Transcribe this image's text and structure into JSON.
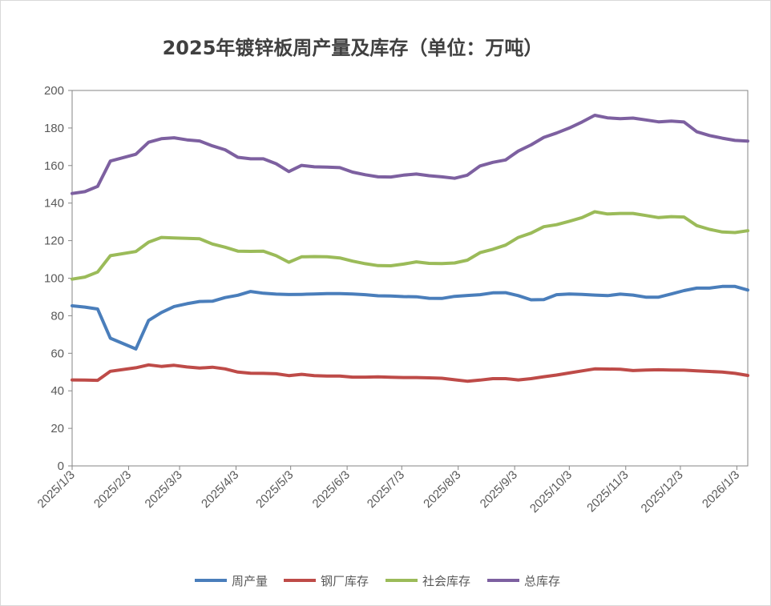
{
  "chart_data": {
    "type": "line",
    "title": "2025年镀锌板周产量及库存（单位：万吨）",
    "xlabel": "",
    "ylabel": "",
    "ylim": [
      0,
      200
    ],
    "yticks": [
      0,
      20,
      40,
      60,
      80,
      100,
      120,
      140,
      160,
      180,
      200
    ],
    "x_tick_labels": [
      "2025/1/3",
      "2025/2/3",
      "2025/3/3",
      "2025/4/3",
      "2025/5/3",
      "2025/6/3",
      "2025/7/3",
      "2025/8/3",
      "2025/9/3",
      "2025/10/3",
      "2025/11/3",
      "2025/12/3",
      "2026/1/3"
    ],
    "x_range": [
      "2025/1/3",
      "2026/1/9"
    ],
    "grid": false,
    "legend_position": "bottom",
    "series": [
      {
        "name": "周产量",
        "color": "#4a7ebb",
        "values": [
          [
            "2025/1/3",
            85.3
          ],
          [
            "2025/1/10",
            84.6
          ],
          [
            "2025/1/17",
            83.6
          ],
          [
            "2025/1/24",
            68.0
          ],
          [
            "2025/2/7",
            62.3
          ],
          [
            "2025/2/14",
            77.5
          ],
          [
            "2025/2/21",
            81.7
          ],
          [
            "2025/2/28",
            84.9
          ],
          [
            "2025/3/7",
            86.4
          ],
          [
            "2025/3/14",
            87.6
          ],
          [
            "2025/3/21",
            87.7
          ],
          [
            "2025/3/28",
            89.7
          ],
          [
            "2025/4/4",
            90.9
          ],
          [
            "2025/4/11",
            92.9
          ],
          [
            "2025/4/18",
            92.0
          ],
          [
            "2025/4/25",
            91.5
          ],
          [
            "2025/5/2",
            91.3
          ],
          [
            "2025/5/9",
            91.4
          ],
          [
            "2025/5/16",
            91.6
          ],
          [
            "2025/5/23",
            91.8
          ],
          [
            "2025/5/30",
            91.8
          ],
          [
            "2025/6/6",
            91.6
          ],
          [
            "2025/6/13",
            91.2
          ],
          [
            "2025/6/20",
            90.6
          ],
          [
            "2025/6/27",
            90.5
          ],
          [
            "2025/7/4",
            90.2
          ],
          [
            "2025/7/11",
            90.1
          ],
          [
            "2025/7/18",
            89.3
          ],
          [
            "2025/7/25",
            89.2
          ],
          [
            "2025/8/1",
            90.3
          ],
          [
            "2025/8/8",
            90.8
          ],
          [
            "2025/8/15",
            91.2
          ],
          [
            "2025/8/22",
            92.2
          ],
          [
            "2025/8/29",
            92.3
          ],
          [
            "2025/9/5",
            90.7
          ],
          [
            "2025/9/12",
            88.5
          ],
          [
            "2025/9/19",
            88.6
          ],
          [
            "2025/9/26",
            91.2
          ],
          [
            "2025/10/3",
            91.6
          ],
          [
            "2025/10/10",
            91.4
          ],
          [
            "2025/10/17",
            91.0
          ],
          [
            "2025/10/24",
            90.7
          ],
          [
            "2025/10/31",
            91.5
          ],
          [
            "2025/11/7",
            91.0
          ],
          [
            "2025/11/14",
            89.9
          ],
          [
            "2025/11/21",
            89.9
          ],
          [
            "2025/11/28",
            91.6
          ],
          [
            "2025/12/5",
            93.4
          ],
          [
            "2025/12/12",
            94.7
          ],
          [
            "2025/12/19",
            94.7
          ],
          [
            "2025/12/26",
            95.6
          ],
          [
            "2026/1/2",
            95.6
          ],
          [
            "2026/1/9",
            93.7
          ]
        ]
      },
      {
        "name": "钢厂库存",
        "color": "#be4b48",
        "values": [
          [
            "2025/1/3",
            45.8
          ],
          [
            "2025/1/10",
            45.7
          ],
          [
            "2025/1/17",
            45.6
          ],
          [
            "2025/1/24",
            50.4
          ],
          [
            "2025/2/7",
            52.3
          ],
          [
            "2025/2/14",
            53.8
          ],
          [
            "2025/2/21",
            53.0
          ],
          [
            "2025/2/28",
            53.6
          ],
          [
            "2025/3/7",
            52.7
          ],
          [
            "2025/3/14",
            52.1
          ],
          [
            "2025/3/21",
            52.6
          ],
          [
            "2025/3/28",
            51.7
          ],
          [
            "2025/4/4",
            50.0
          ],
          [
            "2025/4/11",
            49.4
          ],
          [
            "2025/4/18",
            49.3
          ],
          [
            "2025/4/25",
            49.1
          ],
          [
            "2025/5/2",
            48.1
          ],
          [
            "2025/5/9",
            48.8
          ],
          [
            "2025/5/16",
            48.1
          ],
          [
            "2025/5/23",
            47.9
          ],
          [
            "2025/5/30",
            47.9
          ],
          [
            "2025/6/6",
            47.3
          ],
          [
            "2025/6/13",
            47.3
          ],
          [
            "2025/6/20",
            47.4
          ],
          [
            "2025/6/27",
            47.2
          ],
          [
            "2025/7/4",
            47.1
          ],
          [
            "2025/7/11",
            47.1
          ],
          [
            "2025/7/18",
            46.9
          ],
          [
            "2025/7/25",
            46.7
          ],
          [
            "2025/8/1",
            45.9
          ],
          [
            "2025/8/8",
            45.1
          ],
          [
            "2025/8/15",
            45.7
          ],
          [
            "2025/8/22",
            46.5
          ],
          [
            "2025/8/29",
            46.5
          ],
          [
            "2025/9/5",
            45.8
          ],
          [
            "2025/9/12",
            46.5
          ],
          [
            "2025/9/19",
            47.5
          ],
          [
            "2025/9/26",
            48.4
          ],
          [
            "2025/10/3",
            49.5
          ],
          [
            "2025/10/10",
            50.6
          ],
          [
            "2025/10/17",
            51.7
          ],
          [
            "2025/10/24",
            51.6
          ],
          [
            "2025/10/31",
            51.5
          ],
          [
            "2025/11/7",
            50.8
          ],
          [
            "2025/11/14",
            51.1
          ],
          [
            "2025/11/21",
            51.2
          ],
          [
            "2025/11/28",
            51.1
          ],
          [
            "2025/12/5",
            51.0
          ],
          [
            "2025/12/12",
            50.6
          ],
          [
            "2025/12/19",
            50.3
          ],
          [
            "2025/12/26",
            50.0
          ],
          [
            "2026/1/2",
            49.3
          ],
          [
            "2026/1/9",
            48.2
          ]
        ]
      },
      {
        "name": "社会库存",
        "color": "#9bbb59",
        "values": [
          [
            "2025/1/3",
            99.5
          ],
          [
            "2025/1/10",
            100.6
          ],
          [
            "2025/1/17",
            103.3
          ],
          [
            "2025/1/24",
            112.0
          ],
          [
            "2025/2/7",
            114.2
          ],
          [
            "2025/2/14",
            119.2
          ],
          [
            "2025/2/21",
            121.7
          ],
          [
            "2025/2/28",
            121.4
          ],
          [
            "2025/3/7",
            121.2
          ],
          [
            "2025/3/14",
            121.0
          ],
          [
            "2025/3/21",
            118.2
          ],
          [
            "2025/3/28",
            116.5
          ],
          [
            "2025/4/4",
            114.4
          ],
          [
            "2025/4/11",
            114.3
          ],
          [
            "2025/4/18",
            114.4
          ],
          [
            "2025/4/25",
            112.0
          ],
          [
            "2025/5/2",
            108.5
          ],
          [
            "2025/5/9",
            111.4
          ],
          [
            "2025/5/16",
            111.5
          ],
          [
            "2025/5/23",
            111.4
          ],
          [
            "2025/5/30",
            110.8
          ],
          [
            "2025/6/6",
            109.1
          ],
          [
            "2025/6/13",
            107.7
          ],
          [
            "2025/6/20",
            106.7
          ],
          [
            "2025/6/27",
            106.6
          ],
          [
            "2025/7/4",
            107.5
          ],
          [
            "2025/7/11",
            108.7
          ],
          [
            "2025/7/18",
            107.9
          ],
          [
            "2025/7/25",
            107.8
          ],
          [
            "2025/8/1",
            108.1
          ],
          [
            "2025/8/8",
            109.6
          ],
          [
            "2025/8/15",
            113.6
          ],
          [
            "2025/8/22",
            115.4
          ],
          [
            "2025/8/29",
            117.6
          ],
          [
            "2025/9/5",
            121.7
          ],
          [
            "2025/9/12",
            124.0
          ],
          [
            "2025/9/19",
            127.4
          ],
          [
            "2025/9/26",
            128.5
          ],
          [
            "2025/10/3",
            130.3
          ],
          [
            "2025/10/10",
            132.3
          ],
          [
            "2025/10/17",
            135.4
          ],
          [
            "2025/10/24",
            134.2
          ],
          [
            "2025/10/31",
            134.5
          ],
          [
            "2025/11/7",
            134.5
          ],
          [
            "2025/11/14",
            133.4
          ],
          [
            "2025/11/21",
            132.3
          ],
          [
            "2025/11/28",
            132.8
          ],
          [
            "2025/12/5",
            132.6
          ],
          [
            "2025/12/12",
            128.0
          ],
          [
            "2025/12/19",
            126.0
          ],
          [
            "2025/12/26",
            124.6
          ],
          [
            "2026/1/2",
            124.3
          ],
          [
            "2026/1/9",
            125.3
          ]
        ]
      },
      {
        "name": "总库存",
        "color": "#7d60a0",
        "values": [
          [
            "2025/1/3",
            145.1
          ],
          [
            "2025/1/10",
            146.1
          ],
          [
            "2025/1/17",
            148.9
          ],
          [
            "2025/1/24",
            162.4
          ],
          [
            "2025/2/7",
            166.0
          ],
          [
            "2025/2/14",
            172.4
          ],
          [
            "2025/2/21",
            174.3
          ],
          [
            "2025/2/28",
            174.8
          ],
          [
            "2025/3/7",
            173.7
          ],
          [
            "2025/3/14",
            173.1
          ],
          [
            "2025/3/21",
            170.5
          ],
          [
            "2025/3/28",
            168.4
          ],
          [
            "2025/4/4",
            164.4
          ],
          [
            "2025/4/11",
            163.6
          ],
          [
            "2025/4/18",
            163.6
          ],
          [
            "2025/4/25",
            161.0
          ],
          [
            "2025/5/2",
            156.8
          ],
          [
            "2025/5/9",
            160.1
          ],
          [
            "2025/5/16",
            159.3
          ],
          [
            "2025/5/23",
            159.2
          ],
          [
            "2025/5/30",
            158.9
          ],
          [
            "2025/6/6",
            156.5
          ],
          [
            "2025/6/13",
            155.1
          ],
          [
            "2025/6/20",
            154.0
          ],
          [
            "2025/6/27",
            153.9
          ],
          [
            "2025/7/4",
            154.9
          ],
          [
            "2025/7/11",
            155.5
          ],
          [
            "2025/7/18",
            154.6
          ],
          [
            "2025/7/25",
            154.0
          ],
          [
            "2025/8/1",
            153.2
          ],
          [
            "2025/8/8",
            154.9
          ],
          [
            "2025/8/15",
            159.8
          ],
          [
            "2025/8/22",
            161.7
          ],
          [
            "2025/8/29",
            163.0
          ],
          [
            "2025/9/5",
            167.7
          ],
          [
            "2025/9/12",
            171.0
          ],
          [
            "2025/9/19",
            175.0
          ],
          [
            "2025/9/26",
            177.3
          ],
          [
            "2025/10/3",
            180.0
          ],
          [
            "2025/10/10",
            183.2
          ],
          [
            "2025/10/17",
            186.8
          ],
          [
            "2025/10/24",
            185.4
          ],
          [
            "2025/10/31",
            185.0
          ],
          [
            "2025/11/7",
            185.3
          ],
          [
            "2025/11/14",
            184.3
          ],
          [
            "2025/11/21",
            183.3
          ],
          [
            "2025/11/28",
            183.7
          ],
          [
            "2025/12/5",
            183.2
          ],
          [
            "2025/12/12",
            178.0
          ],
          [
            "2025/12/19",
            176.0
          ],
          [
            "2025/12/26",
            174.6
          ],
          [
            "2026/1/2",
            173.4
          ],
          [
            "2026/1/9",
            173.0
          ]
        ]
      }
    ]
  }
}
